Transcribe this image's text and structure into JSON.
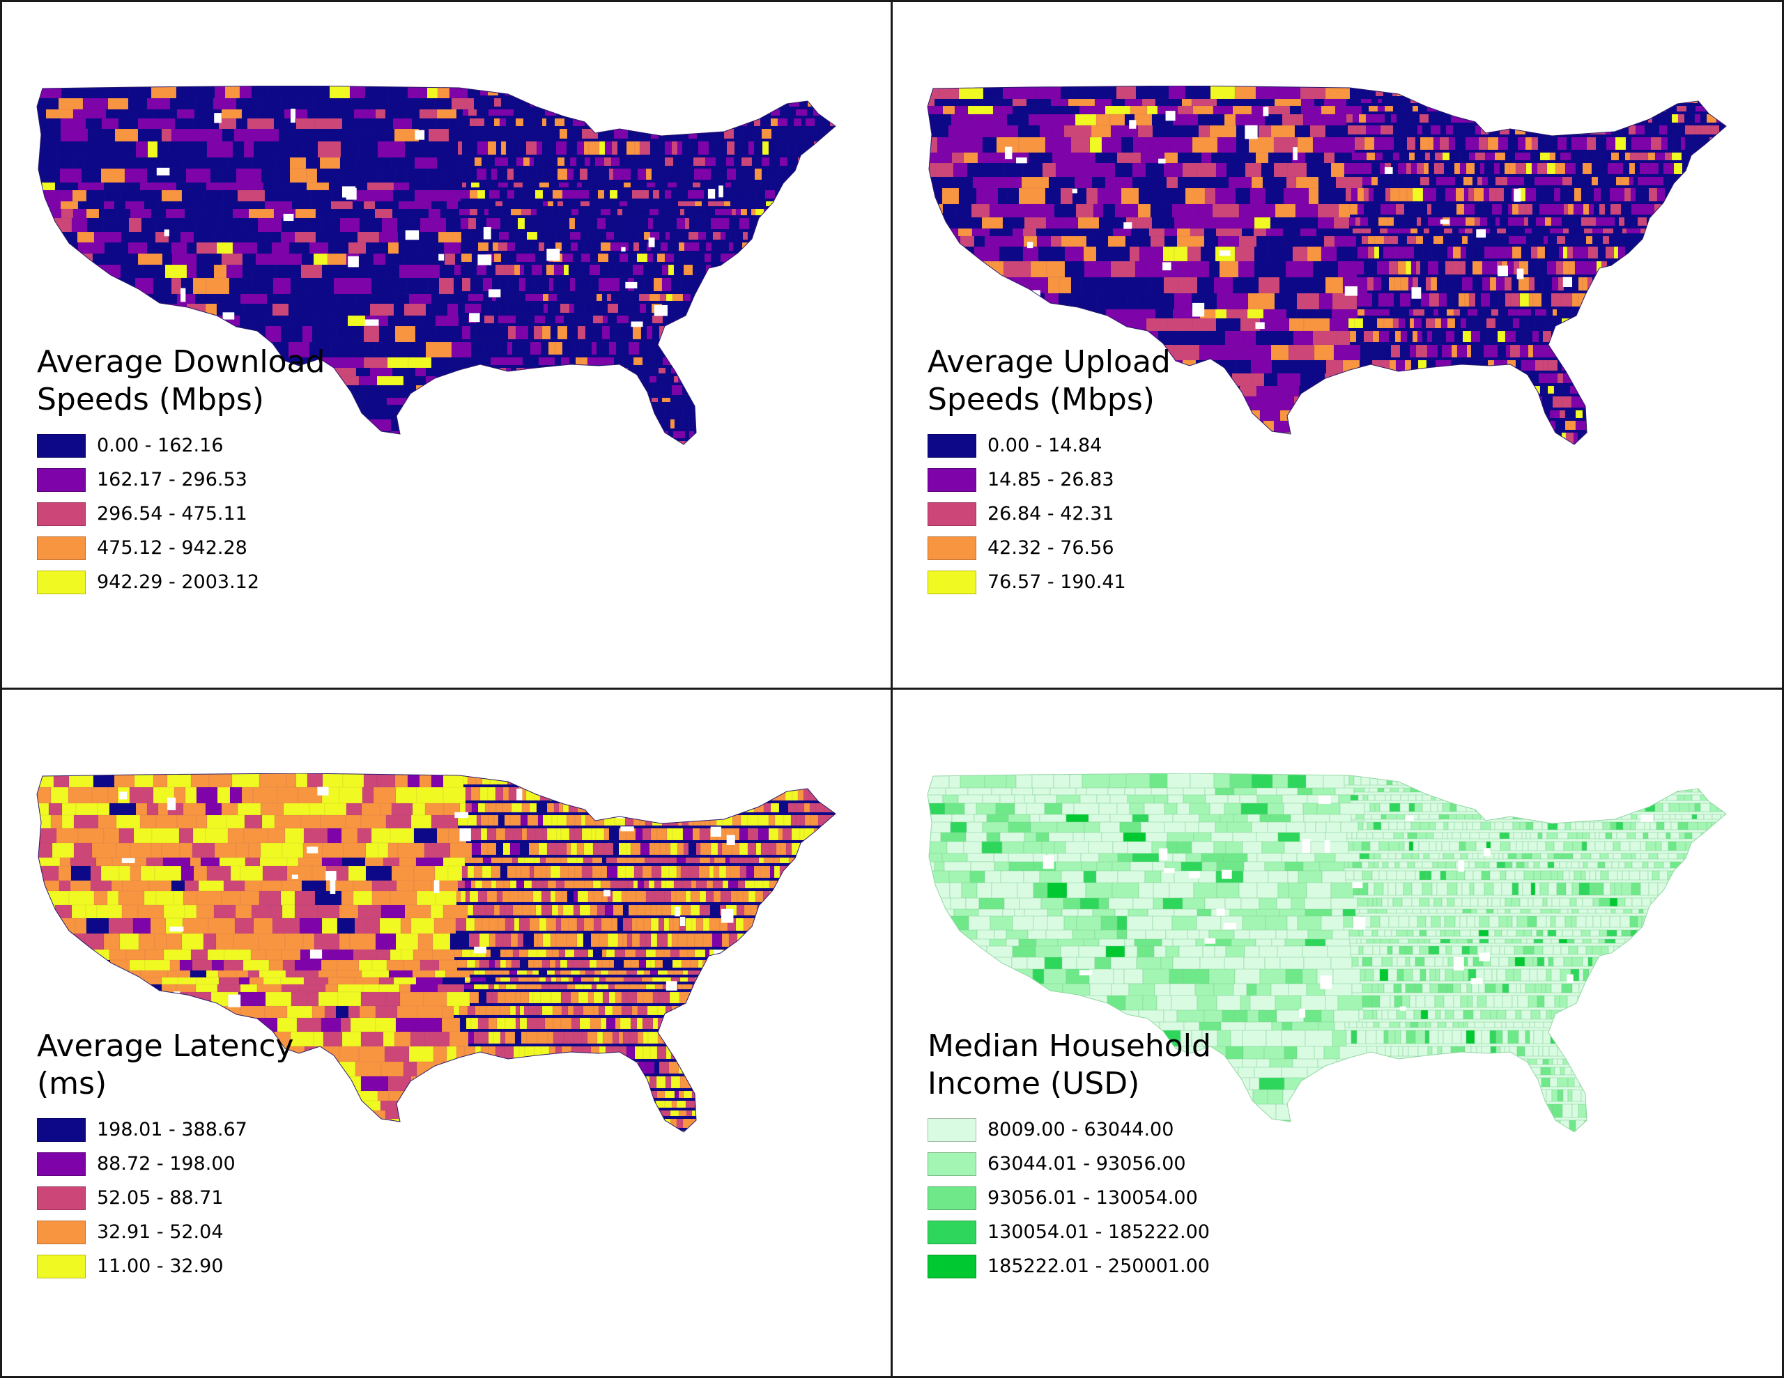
{
  "panels": [
    {
      "title_lines": [
        "Average Download",
        "Speeds (Mbps)"
      ],
      "palette": [
        "#0d0887",
        "#7e03a8",
        "#cc4778",
        "#f89540",
        "#f0f921"
      ],
      "weights": [
        0.62,
        0.22,
        0.08,
        0.06,
        0.02
      ],
      "legend": [
        {
          "label": "0.00 - 162.16",
          "color": "#0d0887"
        },
        {
          "label": "162.17 - 296.53",
          "color": "#7e03a8"
        },
        {
          "label": "296.54 - 475.11",
          "color": "#cc4778"
        },
        {
          "label": "475.12 - 942.28",
          "color": "#f89540"
        },
        {
          "label": "942.29 - 2003.12",
          "color": "#f0f921"
        }
      ]
    },
    {
      "title_lines": [
        "Average Upload",
        "Speeds (Mbps)"
      ],
      "palette": [
        "#0d0887",
        "#7e03a8",
        "#cc4778",
        "#f89540",
        "#f0f921"
      ],
      "weights": [
        0.4,
        0.28,
        0.16,
        0.12,
        0.04
      ],
      "legend": [
        {
          "label": "0.00 - 14.84",
          "color": "#0d0887"
        },
        {
          "label": "14.85 - 26.83",
          "color": "#7e03a8"
        },
        {
          "label": "26.84 - 42.31",
          "color": "#cc4778"
        },
        {
          "label": "42.32 - 76.56",
          "color": "#f89540"
        },
        {
          "label": "76.57 - 190.41",
          "color": "#f0f921"
        }
      ]
    },
    {
      "title_lines": [
        "Average Latency",
        "(ms)"
      ],
      "palette": [
        "#0d0887",
        "#7e03a8",
        "#cc4778",
        "#f89540",
        "#f0f921"
      ],
      "weights": [
        0.03,
        0.07,
        0.25,
        0.4,
        0.25
      ],
      "legend": [
        {
          "label": "198.01 - 388.67",
          "color": "#0d0887"
        },
        {
          "label": "88.72 - 198.00",
          "color": "#7e03a8"
        },
        {
          "label": "52.05 - 88.71",
          "color": "#cc4778"
        },
        {
          "label": "32.91 - 52.04",
          "color": "#f89540"
        },
        {
          "label": "11.00 - 32.90",
          "color": "#f0f921"
        }
      ]
    },
    {
      "title_lines": [
        "Median Household",
        "Income (USD)"
      ],
      "palette": [
        "#d9fbe2",
        "#a3f5b4",
        "#6ee889",
        "#2fd65c",
        "#00c830"
      ],
      "weights": [
        0.55,
        0.3,
        0.1,
        0.04,
        0.01
      ],
      "legend": [
        {
          "label": "8009.00 - 63044.00",
          "color": "#d9fbe2"
        },
        {
          "label": "63044.01 - 93056.00",
          "color": "#a3f5b4"
        },
        {
          "label": "93056.01 - 130054.00",
          "color": "#6ee889"
        },
        {
          "label": "130054.01 - 185222.00",
          "color": "#2fd65c"
        },
        {
          "label": "185222.01 - 250001.00",
          "color": "#00c830"
        }
      ]
    }
  ]
}
